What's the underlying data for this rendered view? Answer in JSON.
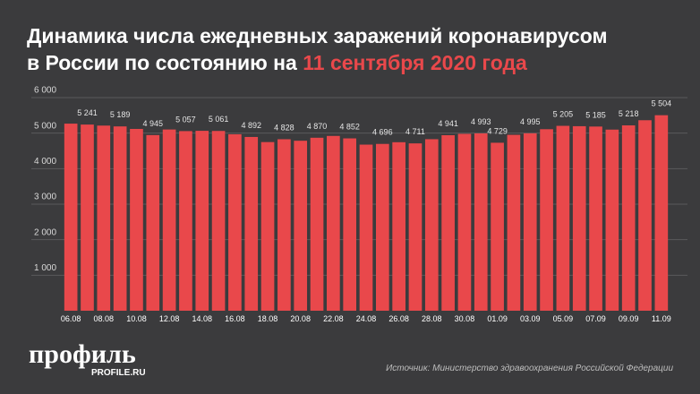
{
  "chart_data": {
    "type": "bar",
    "title_line1": "Динамика числа ежедневных заражений коронавирусом",
    "title_line2": "в России по состоянию на",
    "title_highlight": "11 сентября 2020 года",
    "categories": [
      "06.08",
      null,
      "08.08",
      null,
      "10.08",
      null,
      "12.08",
      null,
      "14.08",
      null,
      "16.08",
      null,
      "18.08",
      null,
      "20.08",
      null,
      "22.08",
      null,
      "24.08",
      null,
      "26.08",
      null,
      "28.08",
      null,
      "30.08",
      null,
      "01.09",
      null,
      "03.09",
      null,
      "05.09",
      null,
      "07.09",
      null,
      "09.09",
      null,
      "11.09"
    ],
    "values": [
      5267,
      5241,
      5212,
      5189,
      5118,
      4945,
      5102,
      5057,
      5065,
      5061,
      4969,
      4892,
      4748,
      4828,
      4785,
      4870,
      4921,
      4852,
      4676,
      4696,
      4744,
      4711,
      4829,
      4941,
      4980,
      4993,
      4729,
      4952,
      4995,
      5110,
      5205,
      5195,
      5185,
      5099,
      5218,
      5363,
      5504
    ],
    "value_labels": [
      null,
      "5 241",
      null,
      "5 189",
      null,
      "4 945",
      null,
      "5 057",
      null,
      "5 061",
      null,
      "4 892",
      null,
      "4 828",
      null,
      "4 870",
      null,
      "4 852",
      null,
      "4 696",
      null,
      "4 711",
      null,
      "4 941",
      null,
      "4 993",
      "4 729",
      null,
      "4 995",
      null,
      "5 205",
      null,
      "5 185",
      null,
      "5 218",
      null,
      "5 504"
    ],
    "color": "#e9484b",
    "ylim": [
      0,
      6000
    ],
    "yticks": [
      {
        "value": 1000,
        "label": "1 000"
      },
      {
        "value": 2000,
        "label": "2 000"
      },
      {
        "value": 3000,
        "label": "3 000"
      },
      {
        "value": 4000,
        "label": "4 000"
      },
      {
        "value": 5000,
        "label": "5 000"
      },
      {
        "value": 6000,
        "label": "6 000"
      }
    ],
    "grid": true
  },
  "footer": {
    "logo": "профиль",
    "logo_url": "PROFILE.RU",
    "source": "Источник: Министерство здравоохранения Российской Федерации"
  }
}
